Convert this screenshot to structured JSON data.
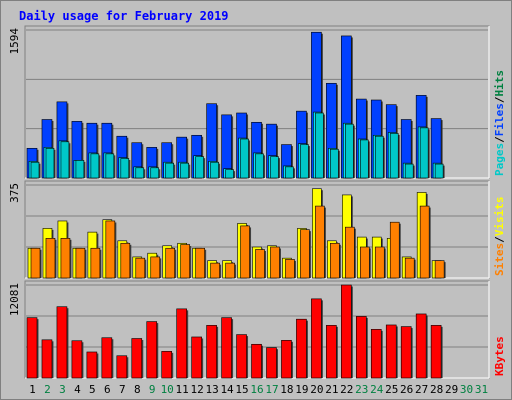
{
  "title": "Daily usage for February 2019",
  "colors": {
    "title": "#0000ff",
    "hits": "#00e0ff",
    "files": "#0040ff",
    "pages": "#00c8c8",
    "visits": "#ffff00",
    "sites": "#ff8000",
    "kbytes": "#ff0000",
    "weekend_label": "#008040",
    "weekday_label": "#000000",
    "panel": "#c0c0c0",
    "gridline": "#808080"
  },
  "chart_data": [
    {
      "type": "bar",
      "panel": "hits-files-pages",
      "ymax_label": "1594",
      "ylim": [
        0,
        1594
      ],
      "legend": {
        "pages": "Pages",
        "files": "Files",
        "hits": "Hits",
        "sep": "/"
      },
      "categories": [
        "1",
        "2",
        "3",
        "4",
        "5",
        "6",
        "7",
        "8",
        "9",
        "10",
        "11",
        "12",
        "13",
        "14",
        "15",
        "16",
        "17",
        "18",
        "19",
        "20",
        "21",
        "22",
        "23",
        "24",
        "25",
        "26",
        "27",
        "28",
        "29",
        "30",
        "31"
      ],
      "series": [
        {
          "name": "Hits",
          "values": [
            320,
            630,
            820,
            610,
            590,
            590,
            450,
            380,
            330,
            380,
            440,
            460,
            800,
            680,
            700,
            600,
            580,
            360,
            720,
            1570,
            1020,
            1530,
            850,
            840,
            790,
            630,
            890,
            640,
            0,
            0,
            0
          ]
        },
        {
          "name": "Files",
          "values": [
            180,
            330,
            400,
            190,
            270,
            270,
            220,
            120,
            120,
            170,
            170,
            240,
            180,
            100,
            430,
            270,
            240,
            130,
            370,
            710,
            320,
            590,
            420,
            460,
            490,
            160,
            550,
            160,
            0,
            0,
            0
          ]
        },
        {
          "name": "Pages",
          "values": [
            170,
            320,
            390,
            190,
            260,
            260,
            210,
            110,
            110,
            160,
            160,
            230,
            170,
            90,
            420,
            260,
            230,
            120,
            360,
            700,
            310,
            580,
            410,
            450,
            480,
            150,
            540,
            150,
            0,
            0,
            0
          ]
        }
      ]
    },
    {
      "type": "bar",
      "panel": "visits-sites",
      "ymax_label": "375",
      "ylim": [
        0,
        375
      ],
      "legend": {
        "sites": "Sites",
        "visits": "Visits",
        "sep": "/"
      },
      "categories": [
        "1",
        "2",
        "3",
        "4",
        "5",
        "6",
        "7",
        "8",
        "9",
        "10",
        "11",
        "12",
        "13",
        "14",
        "15",
        "16",
        "17",
        "18",
        "19",
        "20",
        "21",
        "22",
        "23",
        "24",
        "25",
        "26",
        "27",
        "28",
        "29",
        "30",
        "31"
      ],
      "series": [
        {
          "name": "Visits",
          "values": [
            120,
            200,
            230,
            120,
            185,
            235,
            150,
            85,
            100,
            130,
            140,
            120,
            70,
            70,
            220,
            125,
            130,
            80,
            200,
            360,
            150,
            335,
            165,
            165,
            160,
            85,
            345,
            70,
            0,
            0,
            0
          ]
        },
        {
          "name": "Sites",
          "values": [
            120,
            160,
            160,
            120,
            120,
            230,
            140,
            80,
            85,
            120,
            135,
            120,
            60,
            60,
            210,
            115,
            125,
            75,
            195,
            290,
            140,
            205,
            125,
            125,
            225,
            80,
            290,
            70,
            0,
            0,
            0
          ]
        }
      ]
    },
    {
      "type": "bar",
      "panel": "kbytes",
      "ymax_label": "12081",
      "ylim": [
        0,
        12081
      ],
      "legend": {
        "kbytes": "KBytes"
      },
      "categories": [
        "1",
        "2",
        "3",
        "4",
        "5",
        "6",
        "7",
        "8",
        "9",
        "10",
        "11",
        "12",
        "13",
        "14",
        "15",
        "16",
        "17",
        "18",
        "19",
        "20",
        "21",
        "22",
        "23",
        "24",
        "25",
        "26",
        "27",
        "28",
        "29",
        "30",
        "31"
      ],
      "series": [
        {
          "name": "KBytes",
          "values": [
            7840,
            4960,
            9260,
            4840,
            3380,
            5230,
            2890,
            5130,
            7330,
            3460,
            8980,
            5330,
            6840,
            7840,
            5640,
            4380,
            3940,
            4890,
            7640,
            10280,
            6840,
            12081,
            8000,
            6320,
            6890,
            6680,
            8320,
            6840,
            0,
            0,
            0
          ]
        }
      ]
    }
  ],
  "weekend_days": [
    "2",
    "3",
    "9",
    "10",
    "16",
    "17",
    "23",
    "24",
    "30",
    "31"
  ]
}
